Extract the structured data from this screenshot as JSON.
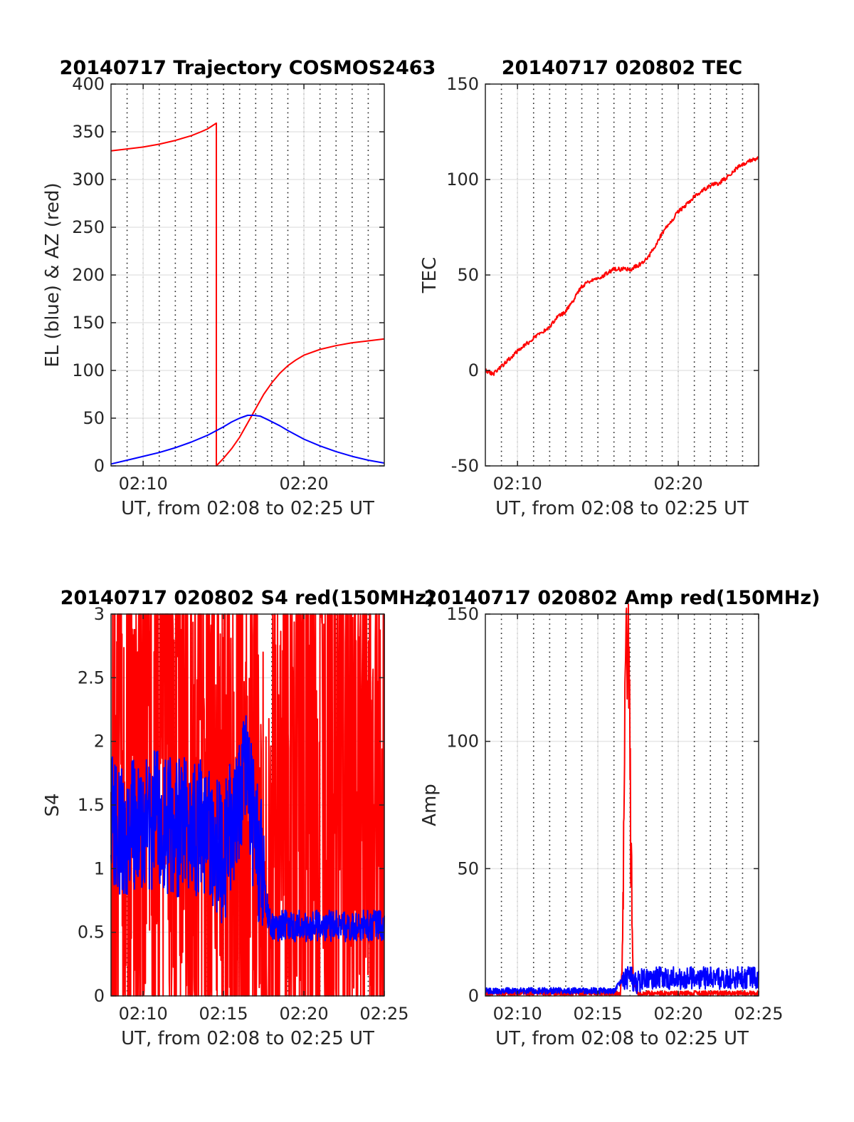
{
  "chart_data": [
    {
      "type": "line",
      "title": "20140717 Trajectory COSMOS2463",
      "xlabel": "UT, from 02:08 to 02:25 UT",
      "ylabel": "EL (blue) & AZ (red)",
      "xlim": [
        8.0,
        25.0
      ],
      "ylim": [
        0,
        400
      ],
      "xticks": [
        10,
        20
      ],
      "xtick_labels": [
        "02:10",
        "02:20"
      ],
      "yticks": [
        0,
        50,
        100,
        150,
        200,
        250,
        300,
        350,
        400
      ],
      "ytick_labels": [
        "0",
        "50",
        "100",
        "150",
        "200",
        "250",
        "300",
        "350",
        "400"
      ],
      "grid": true,
      "series": [
        {
          "color": "#ff0000",
          "x": [
            8.0,
            9.0,
            10.0,
            11.0,
            12.0,
            13.0,
            13.6,
            14.0,
            14.55,
            14.55,
            14.6,
            15.0,
            15.5,
            16.0,
            16.5,
            17.0,
            17.5,
            18.0,
            18.5,
            19.0,
            19.5,
            20.0,
            21.0,
            22.0,
            23.0,
            24.0,
            25.0
          ],
          "values": [
            330,
            332,
            334,
            337,
            341,
            346,
            350,
            353,
            359,
            0,
            1,
            8,
            18,
            30,
            45,
            60,
            75,
            87,
            97,
            105,
            111,
            116,
            122,
            126,
            129,
            131,
            133
          ]
        },
        {
          "color": "#0000ff",
          "x": [
            8.0,
            9.0,
            10.0,
            11.0,
            12.0,
            13.0,
            14.0,
            15.0,
            15.5,
            16.0,
            16.5,
            16.9,
            17.3,
            17.8,
            18.5,
            19.0,
            20.0,
            21.0,
            22.0,
            23.0,
            24.0,
            25.0
          ],
          "values": [
            2,
            6,
            10,
            14,
            19,
            25,
            32,
            41,
            46,
            50,
            53,
            53,
            52,
            48,
            42,
            37,
            28,
            21,
            15,
            10,
            6,
            3
          ]
        }
      ]
    },
    {
      "type": "line",
      "title": "20140717 020802 TEC",
      "xlabel": "UT, from 02:08 to 02:25 UT",
      "ylabel": "TEC",
      "xlim": [
        8.0,
        25.0
      ],
      "ylim": [
        -50,
        150
      ],
      "xticks": [
        10,
        20
      ],
      "xtick_labels": [
        "02:10",
        "02:20"
      ],
      "yticks": [
        -50,
        0,
        50,
        100,
        150
      ],
      "ytick_labels": [
        "-50",
        "0",
        "50",
        "100",
        "150"
      ],
      "grid": true,
      "series": [
        {
          "color": "#ff0000",
          "x": [
            8.0,
            8.5,
            9.0,
            10.0,
            11.0,
            12.0,
            12.5,
            13.0,
            13.5,
            14.0,
            14.5,
            15.0,
            16.0,
            16.5,
            17.0,
            17.5,
            18.0,
            18.5,
            19.0,
            20.0,
            21.0,
            22.0,
            22.5,
            23.0,
            23.5,
            24.0,
            24.5,
            25.0
          ],
          "values": [
            0,
            -2,
            2,
            10,
            17,
            23,
            28,
            31,
            37,
            44,
            47,
            48,
            53,
            53,
            53,
            55,
            58,
            64,
            72,
            83,
            91,
            97,
            98,
            101,
            105,
            108,
            110,
            111
          ]
        }
      ]
    },
    {
      "type": "line",
      "title": "20140717 020802 S4 red(150MHz)",
      "xlabel": "UT, from 02:08 to 02:25 UT",
      "ylabel": "S4",
      "xlim": [
        8.0,
        25.0
      ],
      "ylim": [
        0,
        3
      ],
      "xticks": [
        10,
        15,
        20,
        25
      ],
      "xtick_labels": [
        "02:10",
        "02:15",
        "02:20",
        "02:25"
      ],
      "yticks": [
        0,
        0.5,
        1,
        1.5,
        2,
        2.5,
        3
      ],
      "ytick_labels": [
        "0",
        "0.5",
        "1",
        "1.5",
        "2",
        "2.5",
        "3"
      ],
      "grid": true,
      "series": [
        {
          "color": "#ff0000",
          "x": [
            8.0,
            10.0,
            12.0,
            14.0,
            16.0,
            17.0,
            17.3,
            17.5,
            17.8,
            18.0,
            18.5,
            19.0,
            20.0,
            22.0,
            24.0,
            25.0
          ],
          "values": [
            1.5,
            1.8,
            2.0,
            1.8,
            1.6,
            1.0,
            0.5,
            0.2,
            0.5,
            1.0,
            1.6,
            1.6,
            1.5,
            1.5,
            1.5,
            1.5
          ]
        },
        {
          "color": "#0000ff",
          "x": [
            8.0,
            9.0,
            10.0,
            11.0,
            12.0,
            13.0,
            14.0,
            15.0,
            16.0,
            16.5,
            17.0,
            17.5,
            17.8,
            18.0,
            19.0,
            20.0,
            22.0,
            24.0,
            25.0
          ],
          "values": [
            1.4,
            1.3,
            1.35,
            1.4,
            1.3,
            1.35,
            1.3,
            1.1,
            1.6,
            1.8,
            1.2,
            0.9,
            0.6,
            0.55,
            0.55,
            0.55,
            0.55,
            0.55,
            0.55
          ]
        }
      ]
    },
    {
      "type": "line",
      "title": "20140717 020802 Amp red(150MHz)",
      "xlabel": "UT, from 02:08 to 02:25 UT",
      "ylabel": "Amp",
      "xlim": [
        8.0,
        25.0
      ],
      "ylim": [
        0,
        150
      ],
      "xticks": [
        10,
        15,
        20,
        25
      ],
      "xtick_labels": [
        "02:10",
        "02:15",
        "02:20",
        "02:25"
      ],
      "yticks": [
        0,
        50,
        100,
        150
      ],
      "ytick_labels": [
        "0",
        "50",
        "100",
        "150"
      ],
      "grid": true,
      "series": [
        {
          "color": "#ff0000",
          "x": [
            8.0,
            15.0,
            16.4,
            16.5,
            16.6,
            16.7,
            16.75,
            16.8,
            16.9,
            17.0,
            17.05,
            17.2,
            17.5,
            20.0,
            25.0
          ],
          "values": [
            1,
            1,
            1,
            10,
            60,
            120,
            140,
            130,
            135,
            100,
            50,
            5,
            1,
            1,
            1
          ]
        },
        {
          "color": "#0000ff",
          "x": [
            8.0,
            12.0,
            16.0,
            16.5,
            17.0,
            17.4,
            17.6,
            18.0,
            20.0,
            22.0,
            25.0
          ],
          "values": [
            2,
            2,
            2,
            6,
            8,
            4,
            6,
            7,
            7,
            7,
            7
          ]
        }
      ]
    }
  ]
}
